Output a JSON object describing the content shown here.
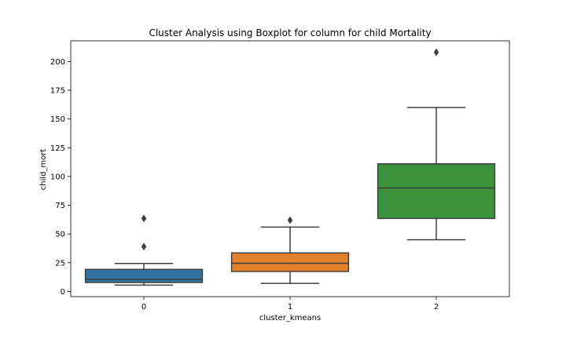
{
  "chart_data": {
    "type": "boxplot",
    "title": "Cluster Analysis using Boxplot for column for child Mortality",
    "xlabel": "cluster_kmeans",
    "ylabel": "child_mort",
    "categories": [
      "0",
      "1",
      "2"
    ],
    "yticks": [
      0,
      25,
      50,
      75,
      100,
      125,
      150,
      175,
      200
    ],
    "ylim": [
      -4.5,
      218
    ],
    "grid": false,
    "boxes": [
      {
        "category": "0",
        "color": "#3274a1",
        "whisker_low": 5.5,
        "q1": 7.8,
        "median": 10.5,
        "q3": 19.2,
        "whisker_high": 24.3,
        "outliers": [
          39.0,
          63.5
        ]
      },
      {
        "category": "1",
        "color": "#e1812c",
        "whisker_low": 7.0,
        "q1": 17.4,
        "median": 24.5,
        "q3": 33.5,
        "whisker_high": 56.0,
        "outliers": [
          62.0
        ]
      },
      {
        "category": "2",
        "color": "#3a923a",
        "whisker_low": 45.0,
        "q1": 63.5,
        "median": 90.0,
        "q3": 111.0,
        "whisker_high": 160.0,
        "outliers": [
          208.0
        ]
      }
    ]
  }
}
